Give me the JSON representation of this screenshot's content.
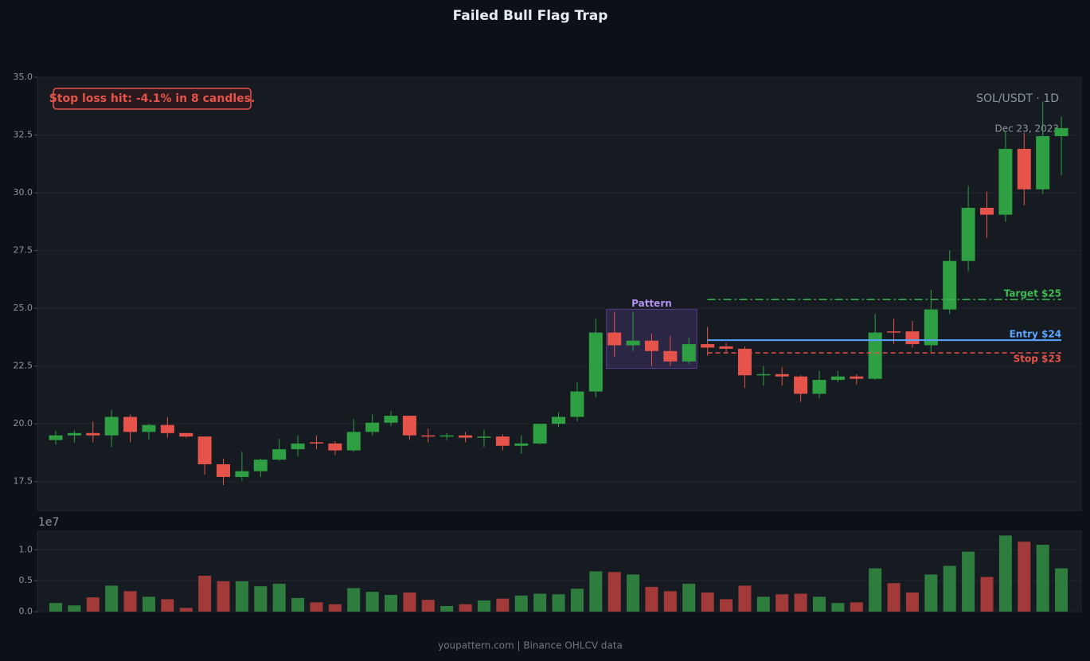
{
  "chart_data": {
    "type": "candlestick",
    "title": "Failed Bull Flag Trap",
    "annotation": "Stop loss hit: -4.1% in 8 candles.",
    "symbol_label": "SOL/USDT · 1D",
    "date_label": "Dec 23, 2023",
    "up_color": "#2ea043",
    "down_color": "#e5534b",
    "grid": true,
    "ylim": [
      16.25,
      35
    ],
    "yticks": [
      17.5,
      {
        "value": 20,
        "label": "20.0"
      },
      22.5,
      {
        "value": 25,
        "label": "25.0"
      },
      27.5,
      {
        "value": 30,
        "label": "30.0"
      },
      32.5,
      {
        "value": 35,
        "label": "35.0"
      }
    ],
    "open": [
      19.3,
      19.5,
      19.6,
      19.5,
      20.3,
      19.65,
      19.95,
      19.6,
      19.45,
      18.25,
      17.7,
      17.95,
      18.45,
      18.9,
      19.2,
      19.15,
      18.85,
      19.65,
      20.05,
      20.35,
      19.5,
      19.45,
      19.5,
      19.4,
      19.45,
      19.05,
      19.15,
      20.0,
      20.3,
      21.4,
      23.95,
      23.4,
      23.6,
      23.15,
      22.7,
      23.45,
      23.35,
      23.25,
      22.1,
      22.15,
      22.05,
      21.3,
      21.9,
      22.05,
      21.95,
      24.0,
      24.0,
      23.4,
      24.95,
      27.05,
      29.35,
      29.05,
      31.9,
      30.15,
      32.45
    ],
    "high": [
      19.7,
      19.7,
      20.1,
      20.6,
      20.4,
      20.0,
      20.3,
      19.6,
      19.45,
      18.5,
      18.8,
      18.5,
      19.35,
      19.5,
      19.5,
      19.25,
      20.2,
      20.4,
      20.55,
      20.35,
      19.8,
      19.6,
      19.65,
      19.75,
      19.55,
      19.5,
      20.0,
      20.5,
      21.8,
      24.55,
      24.85,
      24.85,
      23.9,
      23.8,
      23.75,
      24.2,
      23.5,
      23.35,
      22.5,
      22.45,
      22.1,
      22.3,
      22.3,
      22.15,
      24.75,
      24.55,
      24.45,
      25.8,
      27.5,
      30.3,
      30.05,
      32.65,
      32.6,
      33.95,
      33.3
    ],
    "low": [
      19.1,
      19.2,
      19.2,
      19.0,
      19.2,
      19.3,
      19.4,
      19.4,
      17.8,
      17.35,
      17.55,
      17.7,
      18.4,
      18.6,
      18.9,
      18.65,
      18.8,
      19.5,
      19.9,
      19.3,
      19.2,
      19.3,
      19.2,
      19.0,
      18.85,
      18.7,
      19.1,
      19.85,
      20.1,
      21.15,
      22.9,
      23.15,
      22.5,
      22.5,
      22.6,
      22.95,
      23.1,
      21.55,
      21.65,
      21.65,
      20.95,
      21.1,
      21.8,
      21.7,
      21.9,
      23.45,
      23.3,
      23.1,
      24.75,
      26.6,
      28.05,
      28.75,
      29.45,
      29.95,
      30.75
    ],
    "close": [
      19.5,
      19.6,
      19.5,
      20.3,
      19.65,
      19.95,
      19.6,
      19.45,
      18.25,
      17.7,
      17.95,
      18.45,
      18.9,
      19.15,
      19.15,
      18.85,
      19.65,
      20.05,
      20.35,
      19.5,
      19.45,
      19.5,
      19.4,
      19.45,
      19.05,
      19.15,
      20.0,
      20.3,
      21.4,
      23.95,
      23.4,
      23.6,
      23.15,
      22.7,
      23.45,
      23.3,
      23.25,
      22.1,
      22.15,
      22.05,
      21.3,
      21.9,
      22.05,
      21.95,
      23.95,
      23.95,
      23.45,
      24.95,
      27.05,
      29.35,
      29.05,
      31.9,
      30.15,
      32.45,
      32.8
    ],
    "pattern": {
      "label": "Pattern",
      "start": 30,
      "end": 34,
      "range": [
        22.4,
        24.95
      ],
      "color": "#8957e5"
    },
    "levels": [
      {
        "label": "Target $25",
        "value": 25.38,
        "color": "#3fb950",
        "style": "dashdot",
        "start": 35,
        "end": 54
      },
      {
        "label": "Entry $24",
        "value": 23.62,
        "color": "#58a6ff",
        "style": "solid",
        "start": 35,
        "end": 54
      },
      {
        "label": "Stop $23",
        "value": 23.07,
        "color": "#e5534b",
        "style": "dashed",
        "start": 35,
        "end": 54
      }
    ],
    "volume": {
      "offset_label": "1e7",
      "up_color": "#2e7d3f",
      "down_color": "#a33a3a",
      "ylim": [
        0,
        1.3
      ],
      "yticks": [
        {
          "value": 0,
          "label": "0.0"
        },
        0.5,
        {
          "value": 1,
          "label": "1.0"
        }
      ],
      "values": [
        0.14,
        0.1,
        0.23,
        0.42,
        0.33,
        0.24,
        0.2,
        0.06,
        0.58,
        0.49,
        0.49,
        0.41,
        0.45,
        0.22,
        0.15,
        0.12,
        0.38,
        0.32,
        0.27,
        0.31,
        0.19,
        0.09,
        0.12,
        0.18,
        0.21,
        0.26,
        0.29,
        0.28,
        0.37,
        0.65,
        0.64,
        0.6,
        0.4,
        0.33,
        0.45,
        0.31,
        0.2,
        0.42,
        0.24,
        0.28,
        0.29,
        0.24,
        0.14,
        0.15,
        0.7,
        0.46,
        0.31,
        0.6,
        0.74,
        0.97,
        0.56,
        1.23,
        1.13,
        1.08,
        0.7
      ]
    }
  },
  "footer": "youpattern.com | Binance OHLCV data"
}
